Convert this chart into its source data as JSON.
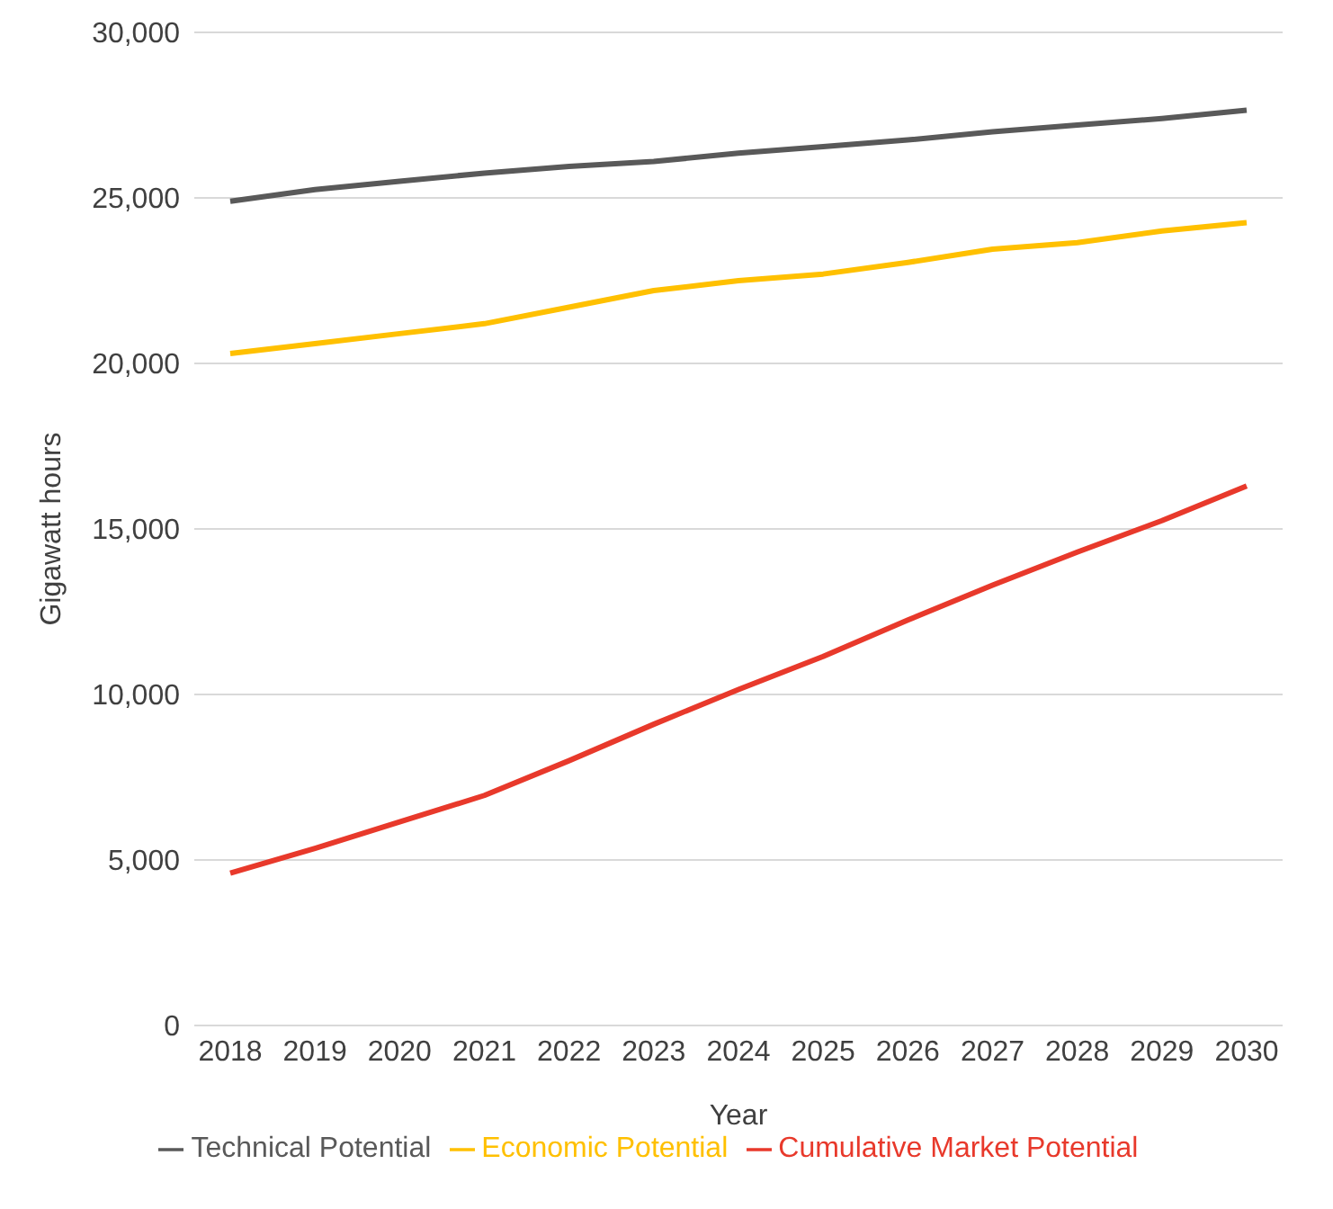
{
  "chart_data": {
    "type": "line",
    "xlabel": "Year",
    "ylabel": "Gigawatt hours",
    "categories": [
      "2018",
      "2019",
      "2020",
      "2021",
      "2022",
      "2023",
      "2024",
      "2025",
      "2026",
      "2027",
      "2028",
      "2029",
      "2030"
    ],
    "series": [
      {
        "name": "Technical Potential",
        "color": "#595959",
        "values": [
          24900,
          25250,
          25500,
          25750,
          25950,
          26100,
          26350,
          26550,
          26750,
          27000,
          27200,
          27400,
          27650
        ]
      },
      {
        "name": "Economic Potential",
        "color": "#ffc000",
        "values": [
          20300,
          20600,
          20900,
          21200,
          21700,
          22200,
          22500,
          22700,
          23050,
          23450,
          23650,
          24000,
          24250
        ]
      },
      {
        "name": "Cumulative Market Potential",
        "color": "#e8392b",
        "values": [
          4600,
          5350,
          6150,
          6950,
          8000,
          9100,
          10150,
          11150,
          12250,
          13300,
          14300,
          15250,
          16300
        ]
      }
    ],
    "ylim": [
      0,
      30000
    ],
    "yticks": [
      0,
      {
        "value": 5000,
        "label": "5,000"
      },
      {
        "value": 10000,
        "label": "10,000"
      },
      {
        "value": 15000,
        "label": "15,000"
      },
      {
        "value": 20000,
        "label": "20,000"
      },
      {
        "value": 25000,
        "label": "25,000"
      },
      {
        "value": 30000,
        "label": "30,000"
      }
    ],
    "grid": "y",
    "legend": "bottom",
    "marker": "none",
    "line_style": "solid"
  }
}
